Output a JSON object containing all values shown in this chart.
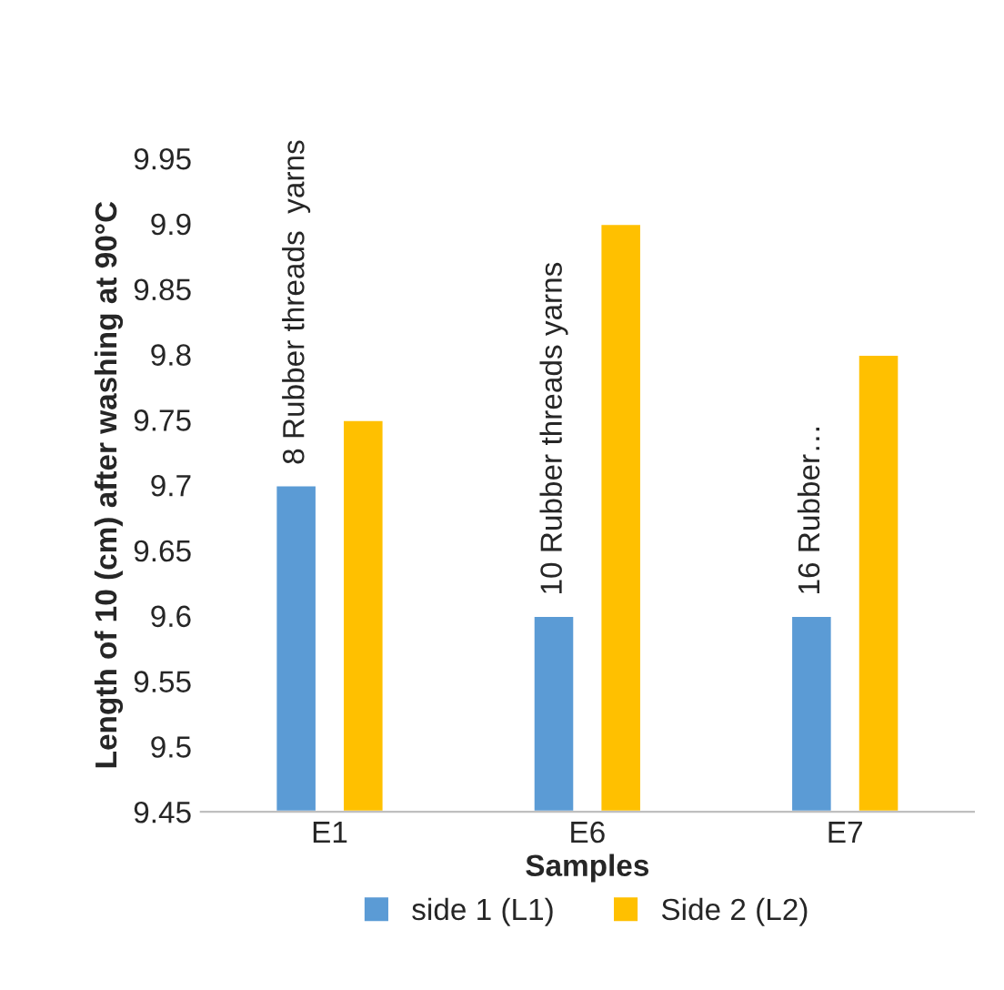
{
  "chart_data": {
    "type": "bar",
    "xlabel": "Samples",
    "ylabel": "Length of 10 (cm) after washing at 90°C",
    "categories": [
      "E1",
      "E6",
      "E7"
    ],
    "series": [
      {
        "name": "side 1 (L1)",
        "color": "#5b9bd5",
        "values": [
          9.7,
          9.6,
          9.6
        ]
      },
      {
        "name": "Side 2 (L2)",
        "color": "#ffc000",
        "values": [
          9.75,
          9.9,
          9.8
        ]
      }
    ],
    "ylim": [
      9.45,
      9.95
    ],
    "yticks": [
      9.45,
      9.5,
      9.55,
      9.6,
      9.65,
      9.7,
      9.75,
      9.8,
      9.85,
      9.9,
      9.95
    ],
    "annotations": [
      "8 Rubber threads  yarns",
      "10 Rubber threads yarns",
      "16 Rubber…"
    ],
    "legend": "bottom",
    "grid": false
  }
}
